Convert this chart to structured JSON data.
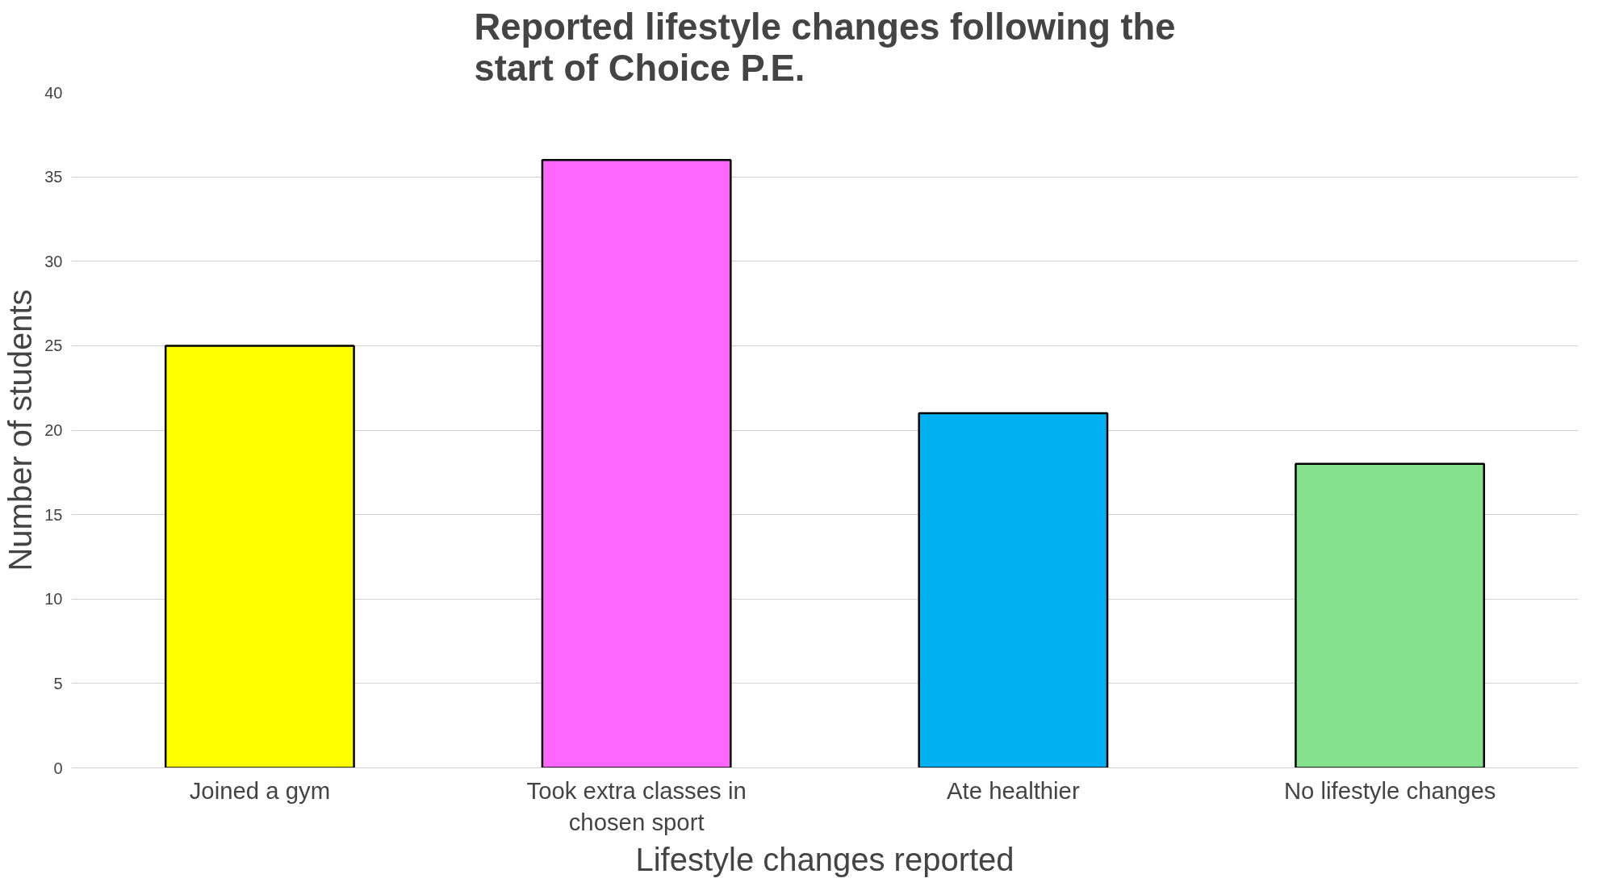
{
  "chart_data": {
    "type": "bar",
    "title": "Reported lifestyle changes following the start of Choice P.E.",
    "xlabel": "Lifestyle changes reported",
    "ylabel": "Number of students",
    "categories": [
      "Joined a gym",
      "Took extra classes in chosen sport",
      "Ate healthier",
      "No lifestyle changes"
    ],
    "values": [
      25,
      36,
      21,
      18
    ],
    "colors": [
      "#ffff00",
      "#ff66ff",
      "#00b0f0",
      "#85e18e"
    ],
    "ylim": [
      0,
      40
    ],
    "yticks": [
      0,
      5,
      10,
      15,
      20,
      25,
      30,
      35,
      40
    ],
    "grid": "y"
  }
}
